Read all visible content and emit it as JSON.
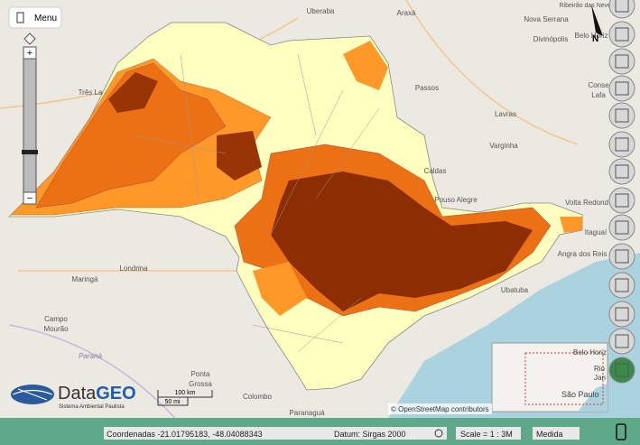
{
  "menu": "Menu",
  "zoom": {
    "plus": "+",
    "minus": "−"
  },
  "map_labels": [
    "Uberaba",
    "Araxá",
    "Ribeirão das Neves",
    "Nova Serrana",
    "Divinópolis",
    "Belo Horiz",
    "Três La",
    "Passos",
    "Conse",
    "Lafa",
    "Lavras",
    "Varginha",
    "Caldas",
    "Pouso Alegre",
    "Volta Redond",
    "Itaguaí",
    "Angra dos Reis",
    "Londrina",
    "Maringá",
    "Campo",
    "Mourão",
    "Paraná",
    "Ubatuba",
    "Ponta",
    "Grossa",
    "Colombo",
    "Paranaguá"
  ],
  "north": "N",
  "attribution": "© OpenStreetMap contributors",
  "logo": {
    "data_part": "Data",
    "geo_part": "GEO",
    "subtitle": "Sistema Ambiental Paulista"
  },
  "scale_bar": {
    "km": "100 km",
    "mi": "50 mi"
  },
  "inset_labels": [
    "Belo Horiz",
    "Rio",
    "Jan",
    "São Paulo"
  ],
  "status_bar": {
    "coordinates": "Coordenadas -21.01795183, -48.04088343",
    "datum": "Datum: Sirgas 2000",
    "scale": "Scale = 1 : 3M",
    "measure": "Medida"
  }
}
